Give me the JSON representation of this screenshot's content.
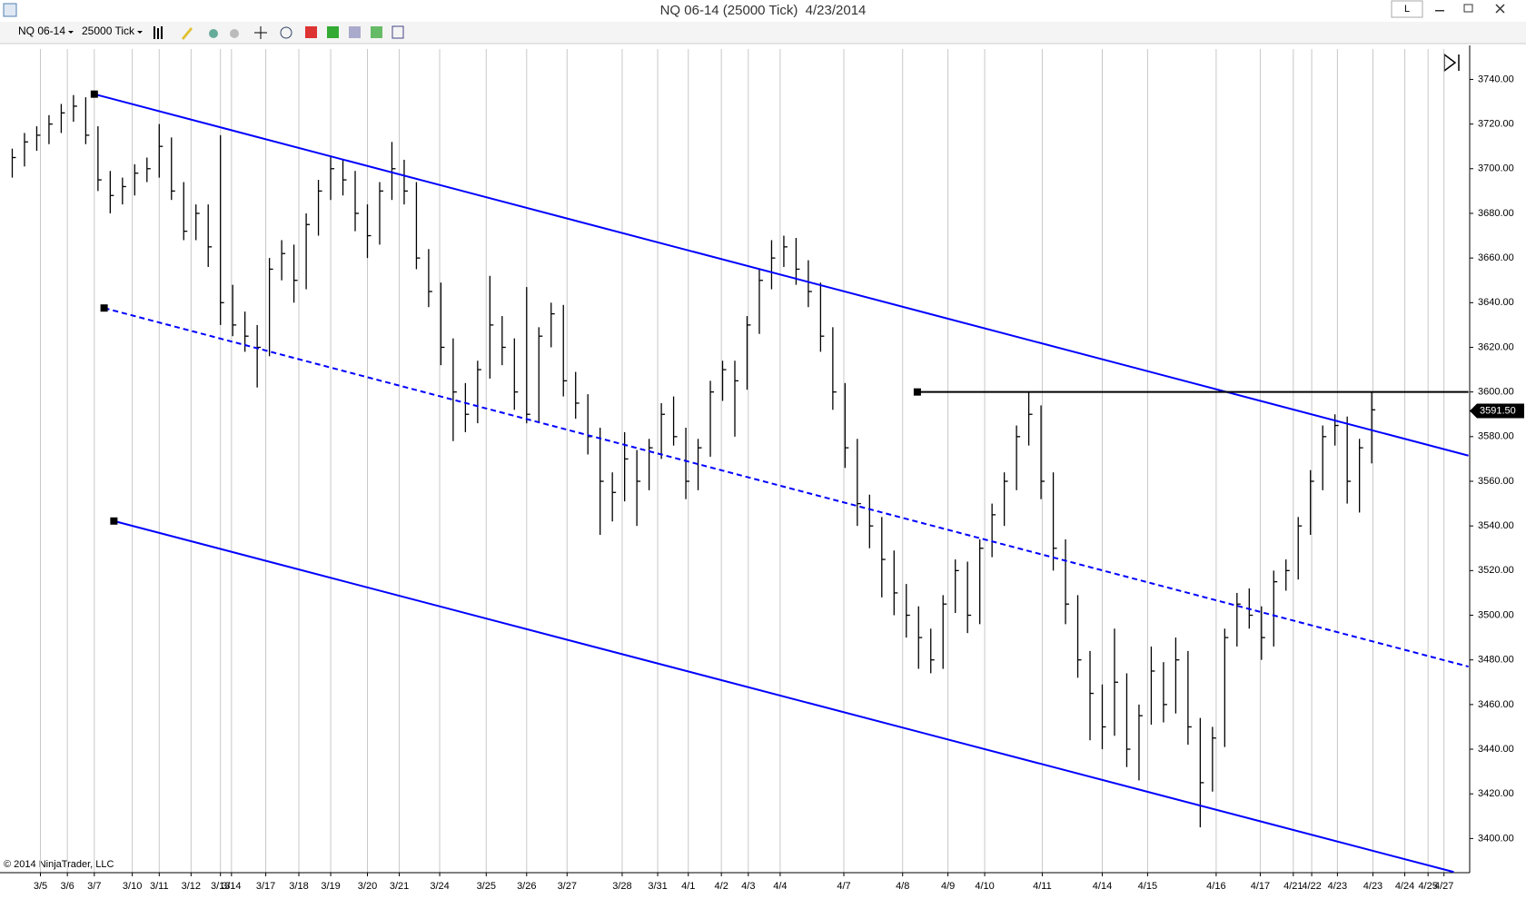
{
  "window": {
    "title": "NQ 06-14 (25000 Tick)  4/23/2014",
    "button": "L"
  },
  "toolbar": {
    "instrument": "NQ 06-14",
    "interval": "25000 Tick"
  },
  "copyright": "© 2014 NinjaTrader, LLC",
  "chart_data": {
    "type": "ohlc",
    "color": "#000000",
    "grid": true,
    "high": [
      3709,
      3716,
      3719,
      3724,
      3729,
      3733,
      3732,
      3719,
      3699,
      3696,
      3702,
      3705,
      3720,
      3714,
      3694,
      3684,
      3684,
      3715,
      3648,
      3636,
      3630,
      3660,
      3668,
      3666,
      3680,
      3695,
      3706,
      3704,
      3699,
      3684,
      3694,
      3712,
      3704,
      3694,
      3664,
      3649,
      3624,
      3604,
      3614,
      3652,
      3634,
      3624,
      3647,
      3629,
      3640,
      3639,
      3609,
      3599,
      3584,
      3564,
      3582,
      3574,
      3579,
      3595,
      3598,
      3584,
      3579,
      3605,
      3614,
      3614,
      3634,
      3655,
      3668,
      3670,
      3669,
      3659,
      3649,
      3629,
      3604,
      3579,
      3554,
      3544,
      3529,
      3514,
      3504,
      3494,
      3509,
      3525,
      3524,
      3534,
      3550,
      3564,
      3585,
      3600,
      3594,
      3564,
      3534,
      3509,
      3484,
      3469,
      3494,
      3474,
      3460,
      3486,
      3479,
      3490,
      3484,
      3454,
      3450,
      3494,
      3510,
      3512,
      3504,
      3520,
      3525,
      3544,
      3565,
      3585,
      3590,
      3589,
      3579,
      3600
    ],
    "low": [
      3696,
      3701,
      3708,
      3711,
      3716,
      3721,
      3711,
      3690,
      3680,
      3684,
      3688,
      3694,
      3696,
      3686,
      3668,
      3668,
      3656,
      3630,
      3625,
      3618,
      3602,
      3616,
      3650,
      3640,
      3646,
      3670,
      3686,
      3688,
      3672,
      3660,
      3666,
      3686,
      3684,
      3655,
      3638,
      3612,
      3578,
      3582,
      3586,
      3606,
      3612,
      3592,
      3586,
      3586,
      3620,
      3598,
      3588,
      3572,
      3536,
      3542,
      3551,
      3540,
      3556,
      3570,
      3576,
      3552,
      3556,
      3571,
      3596,
      3580,
      3601,
      3626,
      3646,
      3656,
      3648,
      3638,
      3618,
      3592,
      3566,
      3540,
      3530,
      3508,
      3500,
      3490,
      3476,
      3474,
      3476,
      3501,
      3492,
      3496,
      3526,
      3540,
      3556,
      3576,
      3552,
      3520,
      3496,
      3472,
      3444,
      3440,
      3446,
      3432,
      3426,
      3451,
      3452,
      3456,
      3442,
      3405,
      3421,
      3441,
      3486,
      3494,
      3480,
      3486,
      3511,
      3516,
      3536,
      3556,
      3576,
      3550,
      3546,
      3568
    ],
    "close": [
      3705,
      3712,
      3715,
      3720,
      3725,
      3728,
      3715,
      3695,
      3688,
      3692,
      3698,
      3700,
      3710,
      3690,
      3672,
      3680,
      3665,
      3640,
      3630,
      3625,
      3620,
      3655,
      3662,
      3650,
      3675,
      3690,
      3700,
      3695,
      3680,
      3670,
      3690,
      3700,
      3690,
      3660,
      3645,
      3620,
      3600,
      3590,
      3610,
      3630,
      3620,
      3600,
      3590,
      3625,
      3635,
      3605,
      3595,
      3580,
      3560,
      3555,
      3570,
      3560,
      3575,
      3590,
      3580,
      3560,
      3575,
      3600,
      3610,
      3605,
      3630,
      3650,
      3660,
      3665,
      3655,
      3645,
      3625,
      3600,
      3575,
      3550,
      3540,
      3525,
      3510,
      3500,
      3490,
      3480,
      3505,
      3520,
      3500,
      3530,
      3545,
      3560,
      3580,
      3590,
      3560,
      3530,
      3505,
      3480,
      3465,
      3450,
      3470,
      3440,
      3455,
      3475,
      3460,
      3480,
      3450,
      3425,
      3445,
      3490,
      3505,
      3500,
      3490,
      3515,
      3520,
      3540,
      3560,
      3580,
      3585,
      3560,
      3575,
      3592
    ],
    "xlim": [
      -1,
      119
    ],
    "ylim": [
      3384.7,
      3753.6
    ],
    "yticks": [
      {
        "value": 3400,
        "label": "3400.00"
      },
      {
        "value": 3420,
        "label": "3420.00"
      },
      {
        "value": 3440,
        "label": "3440.00"
      },
      {
        "value": 3460,
        "label": "3460.00"
      },
      {
        "value": 3480,
        "label": "3480.00"
      },
      {
        "value": 3500,
        "label": "3500.00"
      },
      {
        "value": 3520,
        "label": "3520.00"
      },
      {
        "value": 3540,
        "label": "3540.00"
      },
      {
        "value": 3560,
        "label": "3560.00"
      },
      {
        "value": 3580,
        "label": "3580.00"
      },
      {
        "value": 3600,
        "label": "3600.00"
      },
      {
        "value": 3620,
        "label": "3620.00"
      },
      {
        "value": 3640,
        "label": "3640.00"
      },
      {
        "value": 3660,
        "label": "3660.00"
      },
      {
        "value": 3680,
        "label": "3680.00"
      },
      {
        "value": 3700,
        "label": "3700.00"
      },
      {
        "value": 3720,
        "label": "3720.00"
      },
      {
        "value": 3740,
        "label": "3740.00"
      }
    ],
    "xticks": [
      {
        "value": 2.3,
        "label": "3/5"
      },
      {
        "value": 4.5,
        "label": "3/6"
      },
      {
        "value": 6.7,
        "label": "3/7"
      },
      {
        "value": 9.8,
        "label": "3/10"
      },
      {
        "value": 12,
        "label": "3/11"
      },
      {
        "value": 14.6,
        "label": "3/12"
      },
      {
        "value": 17,
        "label": "3/13"
      },
      {
        "value": 17.9,
        "label": "3/14"
      },
      {
        "value": 20.7,
        "label": "3/17"
      },
      {
        "value": 23.4,
        "label": "3/18"
      },
      {
        "value": 26,
        "label": "3/19"
      },
      {
        "value": 29,
        "label": "3/20"
      },
      {
        "value": 31.6,
        "label": "3/21"
      },
      {
        "value": 34.9,
        "label": "3/24"
      },
      {
        "value": 38.7,
        "label": "3/25"
      },
      {
        "value": 42,
        "label": "3/26"
      },
      {
        "value": 45.3,
        "label": "3/27"
      },
      {
        "value": 49.8,
        "label": "3/28"
      },
      {
        "value": 52.7,
        "label": "3/31"
      },
      {
        "value": 55.2,
        "label": "4/1"
      },
      {
        "value": 57.9,
        "label": "4/2"
      },
      {
        "value": 60.1,
        "label": "4/3"
      },
      {
        "value": 62.7,
        "label": "4/4"
      },
      {
        "value": 67.9,
        "label": "4/7"
      },
      {
        "value": 72.7,
        "label": "4/8"
      },
      {
        "value": 76.4,
        "label": "4/9"
      },
      {
        "value": 79.4,
        "label": "4/10"
      },
      {
        "value": 84.1,
        "label": "4/11"
      },
      {
        "value": 89,
        "label": "4/14"
      },
      {
        "value": 92.7,
        "label": "4/15"
      },
      {
        "value": 98.3,
        "label": "4/16"
      },
      {
        "value": 101.9,
        "label": "4/17"
      },
      {
        "value": 104.6,
        "label": "4/21"
      },
      {
        "value": 106.1,
        "label": "4/22"
      },
      {
        "value": 108.2,
        "label": "4/23"
      },
      {
        "value": 111.1,
        "label": "4/23"
      },
      {
        "value": 113.7,
        "label": "4/24"
      },
      {
        "value": 115.6,
        "label": "4/25"
      },
      {
        "value": 116.9,
        "label": "4/27"
      }
    ],
    "lines": [
      {
        "color": "#0000ff",
        "dashed": false,
        "points": [
          [
            6.7,
            3733.4
          ],
          [
            118.9,
            3571.5
          ]
        ]
      },
      {
        "color": "#0000ff",
        "dashed": true,
        "points": [
          [
            7.5,
            3637.6
          ],
          [
            118.9,
            3477
          ]
        ]
      },
      {
        "color": "#0000ff",
        "dashed": false,
        "points": [
          [
            8.3,
            3542.2
          ],
          [
            117.7,
            3385
          ]
        ]
      },
      {
        "color": "#000000",
        "dashed": false,
        "points": [
          [
            73.9,
            3600
          ],
          [
            118.9,
            3600
          ]
        ]
      }
    ],
    "last_price": {
      "value": 3591.5,
      "label": "3591.50"
    }
  }
}
